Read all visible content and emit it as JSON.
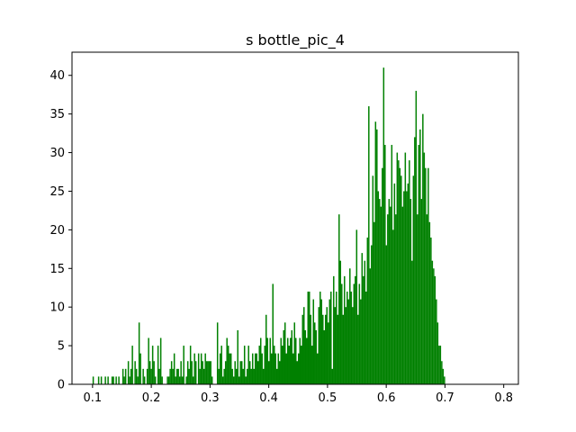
{
  "chart_data": {
    "type": "bar",
    "title": "s bottle_pic_4",
    "xlabel": "",
    "ylabel": "",
    "xlim": [
      0.065,
      0.825
    ],
    "ylim": [
      0,
      43
    ],
    "grid": false,
    "bar_color": "#008000",
    "x_ticks": [
      0.1,
      0.2,
      0.3,
      0.4,
      0.5,
      0.6,
      0.7,
      0.8
    ],
    "x_tick_labels": [
      "0.1",
      "0.2",
      "0.3",
      "0.4",
      "0.5",
      "0.6",
      "0.7",
      "0.8"
    ],
    "y_ticks": [
      0,
      5,
      10,
      15,
      20,
      25,
      30,
      35,
      40
    ],
    "y_tick_labels": [
      "0",
      "5",
      "10",
      "15",
      "20",
      "25",
      "30",
      "35",
      "40"
    ],
    "bin_start": 0.1,
    "bin_width": 0.0023,
    "counts": [
      1,
      0,
      0,
      0,
      1,
      0,
      1,
      0,
      0,
      1,
      0,
      1,
      0,
      0,
      1,
      1,
      0,
      1,
      0,
      1,
      0,
      0,
      2,
      1,
      2,
      0,
      3,
      1,
      2,
      5,
      0,
      3,
      2,
      1,
      8,
      4,
      0,
      2,
      1,
      0,
      2,
      6,
      3,
      2,
      5,
      3,
      1,
      0,
      5,
      2,
      6,
      1,
      0,
      0,
      0,
      1,
      1,
      2,
      3,
      2,
      4,
      1,
      2,
      2,
      1,
      3,
      1,
      5,
      0,
      1,
      3,
      2,
      5,
      3,
      1,
      4,
      3,
      0,
      4,
      2,
      4,
      3,
      2,
      4,
      3,
      3,
      3,
      3,
      1,
      0,
      0,
      0,
      8,
      2,
      4,
      5,
      1,
      2,
      3,
      6,
      5,
      4,
      4,
      2,
      1,
      3,
      2,
      7,
      1,
      3,
      3,
      2,
      5,
      1,
      2,
      5,
      3,
      2,
      4,
      2,
      4,
      4,
      3,
      5,
      6,
      4,
      2,
      5,
      9,
      6,
      3,
      6,
      4,
      13,
      5,
      4,
      2,
      4,
      3,
      6,
      5,
      7,
      8,
      4,
      6,
      5,
      6,
      7,
      4,
      8,
      6,
      3,
      4,
      6,
      5,
      9,
      10,
      7,
      6,
      12,
      12,
      9,
      5,
      11,
      8,
      7,
      4,
      10,
      12,
      11,
      9,
      7,
      9,
      10,
      8,
      11,
      12,
      2,
      14,
      10,
      12,
      9,
      22,
      16,
      13,
      9,
      14,
      10,
      12,
      11,
      15,
      12,
      10,
      13,
      14,
      20,
      9,
      13,
      11,
      17,
      14,
      16,
      12,
      19,
      36,
      15,
      18,
      27,
      21,
      34,
      33,
      25,
      24,
      23,
      28,
      41,
      31,
      18,
      22,
      24,
      23,
      31,
      20,
      26,
      22,
      30,
      29,
      28,
      27,
      23,
      25,
      30,
      25,
      26,
      29,
      24,
      16,
      27,
      32,
      38,
      22,
      31,
      33,
      24,
      35,
      30,
      28,
      22,
      28,
      21,
      19,
      16,
      15,
      14,
      11,
      8,
      5,
      5,
      3,
      2,
      1
    ]
  }
}
